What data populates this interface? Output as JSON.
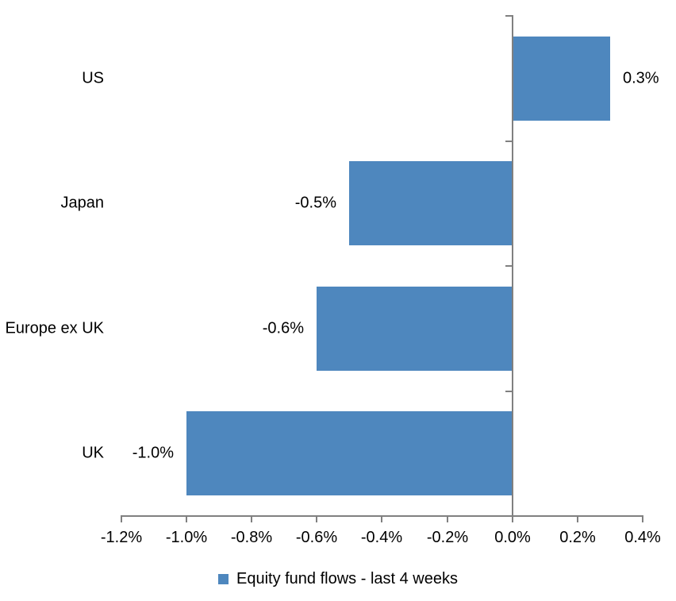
{
  "chart_data": {
    "type": "bar",
    "orientation": "horizontal",
    "title": "",
    "xlabel": "",
    "ylabel": "",
    "categories": [
      "US",
      "Japan",
      "Europe ex UK",
      "UK"
    ],
    "values": [
      0.3,
      -0.5,
      -0.6,
      -1.0
    ],
    "data_labels": [
      "0.3%",
      "-0.5%",
      "-0.6%",
      "-1.0%"
    ],
    "legend": "Equity fund flows - last 4 weeks",
    "legend_position": "bottom",
    "x_ticks": [
      "-1.2%",
      "-1.0%",
      "-0.8%",
      "-0.6%",
      "-0.4%",
      "-0.2%",
      "0.0%",
      "0.2%",
      "0.4%"
    ],
    "x_tick_values": [
      -1.2,
      -1.0,
      -0.8,
      -0.6,
      -0.4,
      -0.2,
      0.0,
      0.2,
      0.4
    ],
    "xlim": [
      -1.2,
      0.4
    ],
    "grid": false,
    "bar_color": "#4e87be",
    "axis_color": "#808080",
    "text_color": "#000000",
    "background_color": "#ffffff"
  }
}
